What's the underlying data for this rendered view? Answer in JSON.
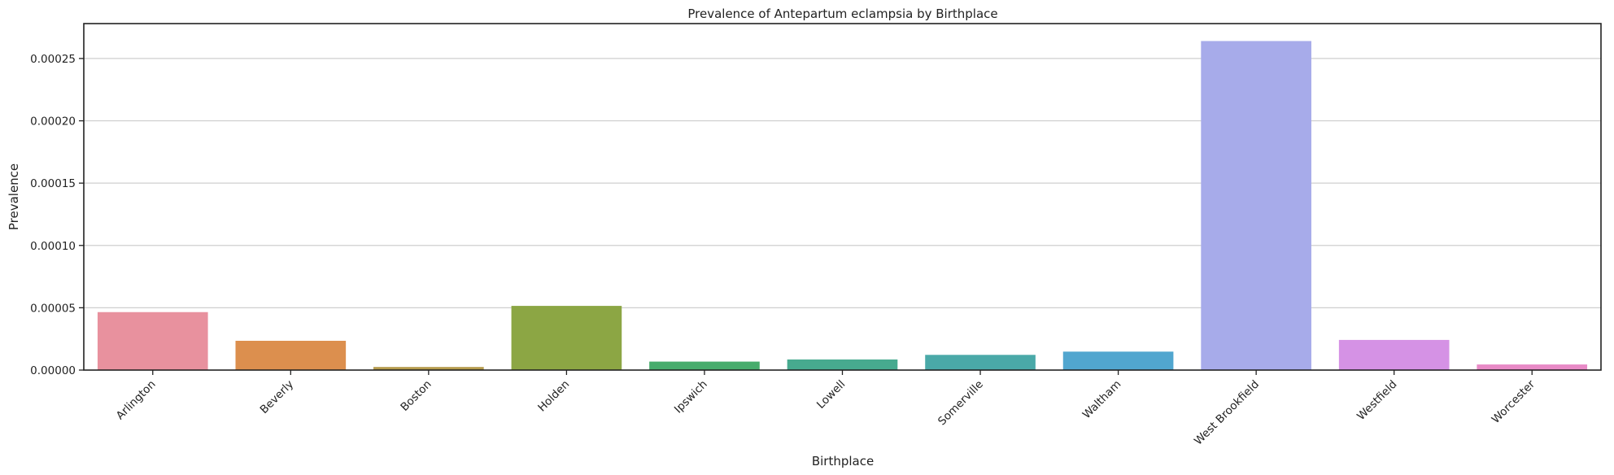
{
  "chart_data": {
    "type": "bar",
    "title": "Prevalence of Antepartum eclampsia by Birthplace",
    "xlabel": "Birthplace",
    "ylabel": "Prevalence",
    "categories": [
      "Arlington",
      "Beverly",
      "Boston",
      "Holden",
      "Ipswich",
      "Lowell",
      "Somerville",
      "Waltham",
      "West Brookfield",
      "Westfield",
      "Worcester"
    ],
    "values": [
      4.65e-05,
      2.35e-05,
      2.5e-06,
      5.15e-05,
      6.8e-06,
      8.5e-06,
      1.22e-05,
      1.48e-05,
      0.000264,
      2.42e-05,
      4.5e-06
    ],
    "colors": [
      "#e8919e",
      "#dc8f4e",
      "#b59b4d",
      "#8ca644",
      "#47ac6c",
      "#47aa8f",
      "#4aa9a8",
      "#51a6cf",
      "#a7abea",
      "#d592e5",
      "#e88ac6"
    ],
    "yticks": [
      "0.00000",
      "0.00005",
      "0.00010",
      "0.00015",
      "0.00020",
      "0.00025"
    ],
    "ytick_values": [
      0,
      5e-05,
      0.0001,
      0.00015,
      0.0002,
      0.00025
    ],
    "ylim": [
      0,
      0.000278
    ],
    "grid": "y",
    "legend": "none"
  }
}
